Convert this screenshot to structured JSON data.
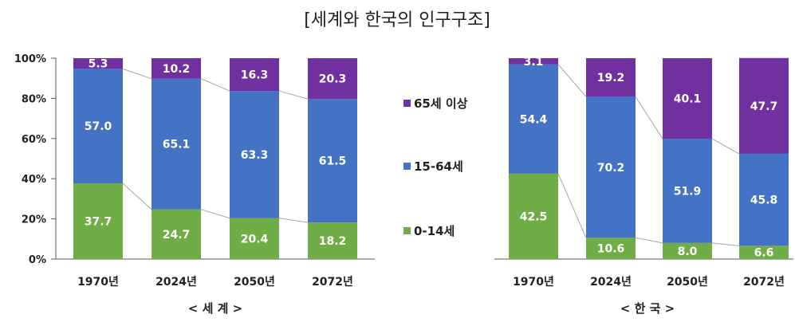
{
  "colors": {
    "young": "#70ad47",
    "working": "#4472c4",
    "old": "#7030a0",
    "connector": "#a6a6a6",
    "axis": "#595959"
  },
  "chart_data": {
    "type": "bar",
    "stacked": true,
    "title": "[세계와 한국의 인구구조]",
    "legend": {
      "placement": "center",
      "entries": [
        "65세 이상",
        "15-64세",
        "0-14세"
      ]
    },
    "y_ticks": [
      "0%",
      "20%",
      "40%",
      "60%",
      "80%",
      "100%"
    ],
    "ylim": [
      0,
      100
    ],
    "panels": [
      {
        "label": "< 세 계 >",
        "categories": [
          "1970년",
          "2024년",
          "2050년",
          "2072년"
        ],
        "series": [
          {
            "name": "0-14세",
            "values": [
              37.7,
              24.7,
              20.4,
              18.2
            ]
          },
          {
            "name": "15-64세",
            "values": [
              57.0,
              65.1,
              63.3,
              61.5
            ]
          },
          {
            "name": "65세 이상",
            "values": [
              5.3,
              10.2,
              16.3,
              20.3
            ]
          }
        ]
      },
      {
        "label": "< 한 국 >",
        "categories": [
          "1970년",
          "2024년",
          "2050년",
          "2072년"
        ],
        "series": [
          {
            "name": "0-14세",
            "values": [
              42.5,
              10.6,
              8.0,
              6.6
            ]
          },
          {
            "name": "15-64세",
            "values": [
              54.4,
              70.2,
              51.9,
              45.8
            ]
          },
          {
            "name": "65세 이상",
            "values": [
              3.1,
              19.2,
              40.1,
              47.7
            ]
          }
        ]
      }
    ]
  }
}
